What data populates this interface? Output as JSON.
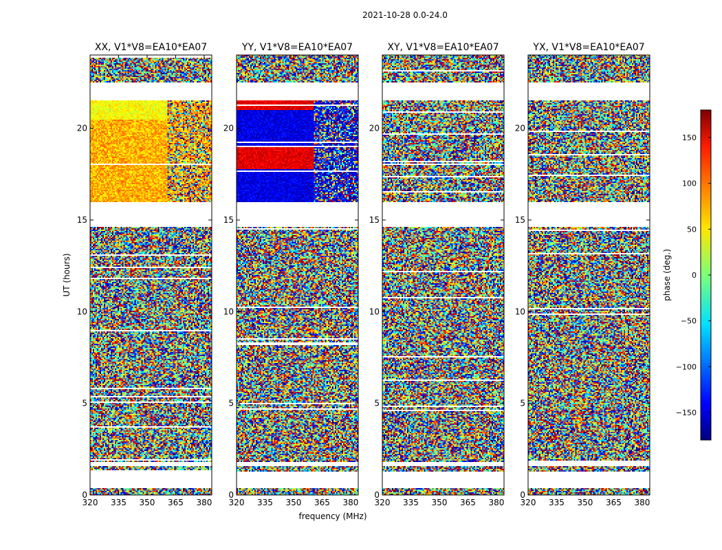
{
  "chart_data": {
    "type": "heatmap",
    "suptitle": "2021-10-28 0.0-24.0",
    "xlabel": "frequency (MHz)",
    "ylabel": "UT (hours)",
    "x_range": [
      320,
      384
    ],
    "y_range": [
      0,
      24
    ],
    "x_ticks": [
      "320",
      "335",
      "350",
      "365",
      "380"
    ],
    "y_ticks": [
      "0",
      "5",
      "10",
      "15",
      "20"
    ],
    "panels": [
      {
        "title": "XX, V1*V8=EA10*EA07",
        "mode": "xx"
      },
      {
        "title": "YY, V1*V8=EA10*EA07",
        "mode": "yy"
      },
      {
        "title": "XY, V1*V8=EA10*EA07",
        "mode": "noise"
      },
      {
        "title": "YX, V1*V8=EA10*EA07",
        "mode": "noise"
      }
    ],
    "gaps_hours": [
      [
        0.35,
        1.3
      ],
      [
        1.6,
        1.8
      ],
      [
        14.6,
        16.0
      ],
      [
        21.5,
        22.5
      ]
    ],
    "colorbar": {
      "label": "phase (deg.)",
      "range": [
        -180,
        180
      ],
      "ticks": [
        "150",
        "100",
        "50",
        "0",
        "−50",
        "−100",
        "−150"
      ],
      "colormap": "jet"
    }
  }
}
